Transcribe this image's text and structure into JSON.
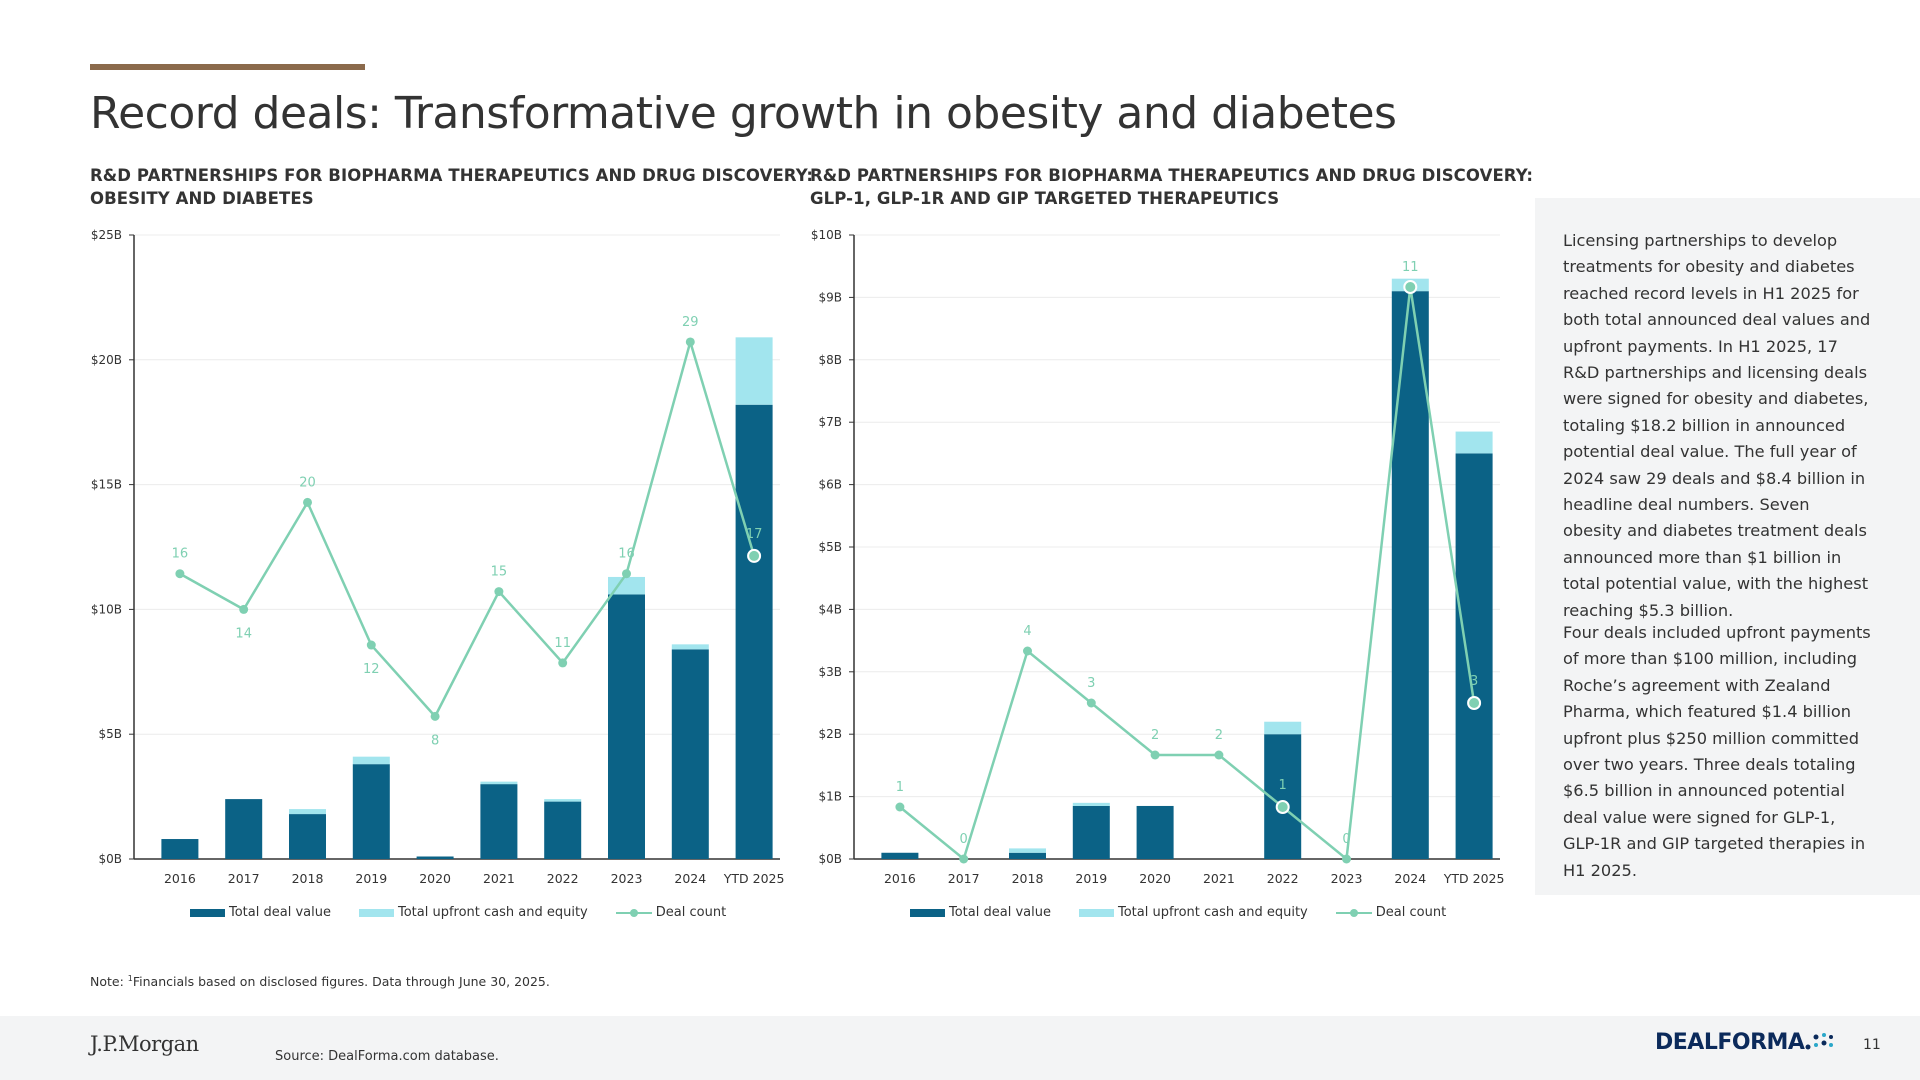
{
  "page": {
    "title": "Record deals: Transformative growth in obesity and diabetes",
    "page_number": "11"
  },
  "colors": {
    "accent_bar": "#8b6a4c",
    "deal_value_bar": "#0b6286",
    "upfront_bar": "#a2e5ee",
    "deal_count_line": "#7fd0b2"
  },
  "chart_left": {
    "heading_line1": "R&D PARTNERSHIPS FOR BIOPHARMA THERAPEUTICS AND DRUG DISCOVERY:",
    "heading_line2": "OBESITY AND DIABETES"
  },
  "chart_right": {
    "heading_line1": "R&D PARTNERSHIPS FOR BIOPHARMA THERAPEUTICS AND DRUG DISCOVERY:",
    "heading_line2": "GLP-1, GLP-1R AND GIP TARGETED THERAPEUTICS"
  },
  "legend": {
    "total_deal_value": "Total deal value",
    "total_upfront": "Total upfront cash and equity",
    "deal_count": "Deal count"
  },
  "chart_data": [
    {
      "type": "bar",
      "title": "R&D PARTNERSHIPS FOR BIOPHARMA THERAPEUTICS AND DRUG DISCOVERY: OBESITY AND DIABETES",
      "categories": [
        "2016",
        "2017",
        "2018",
        "2019",
        "2020",
        "2021",
        "2022",
        "2023",
        "2024",
        "YTD 2025"
      ],
      "series": [
        {
          "name": "Total deal value",
          "values": [
            0.8,
            2.4,
            1.8,
            3.8,
            0.1,
            3.0,
            2.3,
            10.6,
            8.4,
            18.2
          ]
        },
        {
          "name": "Total upfront cash and equity",
          "values": [
            0.0,
            0.0,
            0.2,
            0.3,
            0.0,
            0.1,
            0.1,
            0.7,
            0.2,
            2.7
          ]
        },
        {
          "name": "Deal count",
          "values": [
            16,
            14,
            20,
            12,
            8,
            15,
            11,
            16,
            29,
            17
          ],
          "axis": "secondary",
          "ylim": [
            0,
            35
          ]
        }
      ],
      "yticks": [
        "$0B",
        "$5B",
        "$10B",
        "$15B",
        "$20B",
        "$25B"
      ],
      "ylim": [
        0,
        25
      ],
      "xlabel": "",
      "ylabel": ""
    },
    {
      "type": "bar",
      "title": "R&D PARTNERSHIPS FOR BIOPHARMA THERAPEUTICS AND DRUG DISCOVERY: GLP-1, GLP-1R AND GIP TARGETED THERAPEUTICS",
      "categories": [
        "2016",
        "2017",
        "2018",
        "2019",
        "2020",
        "2021",
        "2022",
        "2023",
        "2024",
        "YTD 2025"
      ],
      "series": [
        {
          "name": "Total deal value",
          "values": [
            0.1,
            0.0,
            0.1,
            0.85,
            0.85,
            0.0,
            2.0,
            0.0,
            9.1,
            6.5
          ]
        },
        {
          "name": "Total upfront cash and equity",
          "values": [
            0.0,
            0.0,
            0.07,
            0.05,
            0.0,
            0.0,
            0.2,
            0.0,
            0.2,
            0.35
          ]
        },
        {
          "name": "Deal count",
          "values": [
            1,
            0,
            4,
            3,
            2,
            2,
            1,
            0,
            11,
            3
          ],
          "axis": "secondary",
          "ylim": [
            0,
            12
          ]
        }
      ],
      "yticks": [
        "$0B",
        "$1B",
        "$2B",
        "$3B",
        "$4B",
        "$5B",
        "$6B",
        "$7B",
        "$8B",
        "$9B",
        "$10B"
      ],
      "ylim": [
        0,
        10
      ],
      "xlabel": "",
      "ylabel": ""
    }
  ],
  "side_panel": {
    "paragraph1": "Licensing partnerships to develop treatments for obesity and diabetes reached record levels in H1 2025 for both total announced deal values and upfront payments. In H1 2025, 17 R&D partnerships and licensing deals were signed for obesity and diabetes, totaling $18.2 billion in announced potential deal value. The full year of 2024 saw 29 deals and $8.4 billion in headline deal numbers. Seven obesity and diabetes treatment deals announced more than $1 billion in total potential value, with the highest reaching $5.3 billion.",
    "paragraph2": "Four deals included upfront payments of more than $100 million, including Roche’s agreement with Zealand Pharma, which featured $1.4 billion upfront plus $250 million committed over two years. Three deals totaling $6.5 billion in announced potential deal value were signed for GLP-1, GLP-1R and GIP targeted therapies in H1 2025."
  },
  "footer": {
    "note_prefix": "Note: ",
    "note_sup": "1",
    "note_text": "Financials based on disclosed figures. Data through June 30, 2025.",
    "source": "Source: DealForma.com database.",
    "jpm_logo": "J.P.Morgan",
    "dealforma_logo": "DEALFORMA"
  }
}
